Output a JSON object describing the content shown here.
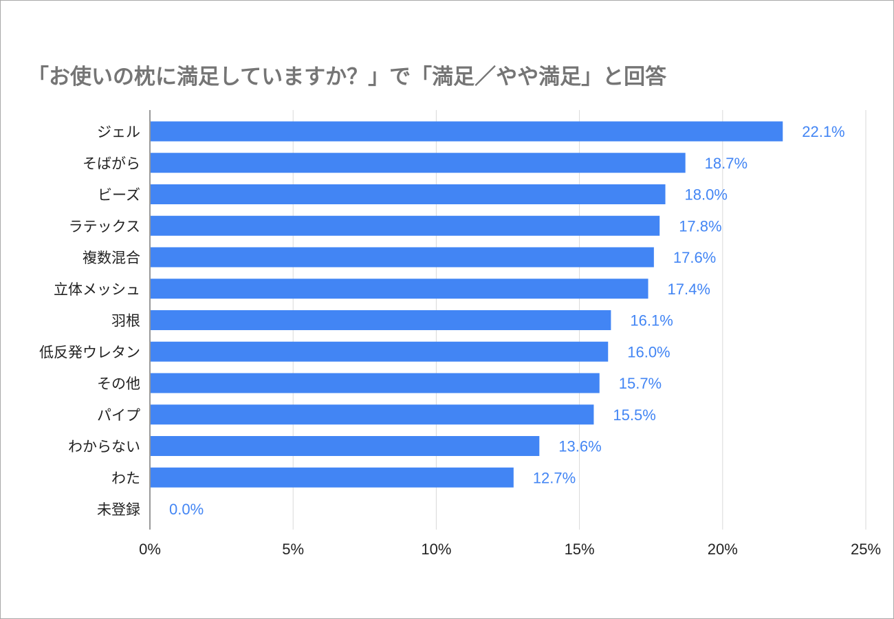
{
  "chart_data": {
    "type": "bar",
    "orientation": "horizontal",
    "title": "「お使いの枕に満足していますか？」で「満足／やや満足」と回答",
    "xlabel": "",
    "ylabel": "",
    "categories": [
      "ジェル",
      "そばがら",
      "ビーズ",
      "ラテックス",
      "複数混合",
      "立体メッシュ",
      "羽根",
      "低反発ウレタン",
      "その他",
      "パイプ",
      "わからない",
      "わた",
      "未登録"
    ],
    "values": [
      22.1,
      18.7,
      18.0,
      17.8,
      17.6,
      17.4,
      16.1,
      16.0,
      15.7,
      15.5,
      13.6,
      12.7,
      0.0
    ],
    "value_labels": [
      "22.1%",
      "18.7%",
      "18.0%",
      "17.8%",
      "17.6%",
      "17.4%",
      "16.1%",
      "16.0%",
      "15.7%",
      "15.5%",
      "13.6%",
      "12.7%",
      "0.0%"
    ],
    "x_ticks": [
      0,
      5,
      10,
      15,
      20,
      25
    ],
    "x_tick_labels": [
      "0%",
      "5%",
      "10%",
      "15%",
      "20%",
      "25%"
    ],
    "xlim": [
      0,
      25
    ],
    "grid": "vertical",
    "legend": "none",
    "bar_color": "#4285f4",
    "label_color": "#4285f4",
    "title_color": "#757575"
  }
}
